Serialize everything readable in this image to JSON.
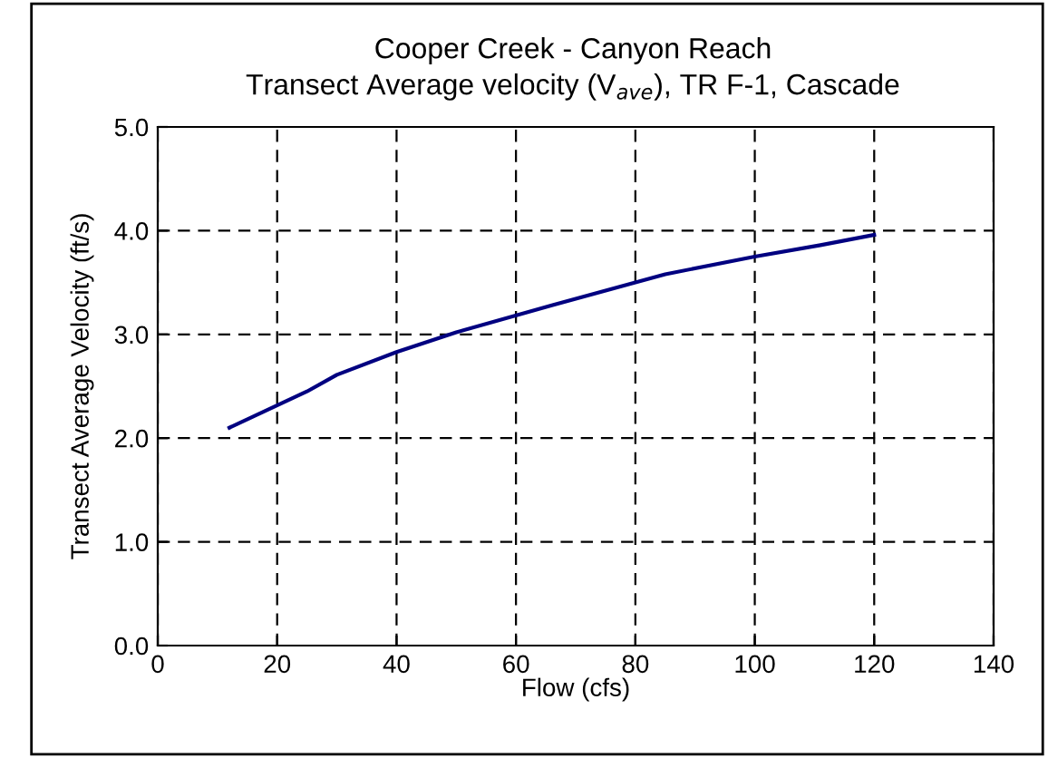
{
  "chart_data": {
    "type": "line",
    "title": "Cooper Creek - Canyon Reach",
    "subtitle": "Transect Average velocity (V$_{ave}$), TR F-1, Cascade",
    "xlabel": "Flow (cfs)",
    "ylabel": "Transect Average Velocity (ft/s)",
    "x": [
      12,
      25,
      30,
      40,
      50,
      66,
      80,
      85,
      100,
      111,
      120
    ],
    "series": [
      {
        "color": "#000080",
        "values": [
          2.1,
          2.45,
          2.61,
          2.83,
          3.02,
          3.28,
          3.5,
          3.58,
          3.75,
          3.86,
          3.96
        ]
      }
    ],
    "xlim": [
      0,
      140
    ],
    "xticks": [
      0,
      20,
      40,
      60,
      80,
      100,
      120,
      140
    ],
    "ylim": [
      0,
      5
    ],
    "yticks": [
      {
        "value": 0,
        "label": "0.0"
      },
      {
        "value": 1,
        "label": "1.0"
      },
      {
        "value": 2,
        "label": "2.0"
      },
      {
        "value": 3,
        "label": "3.0"
      },
      {
        "value": 4,
        "label": "4.0"
      },
      {
        "value": 5,
        "label": "5.0"
      }
    ],
    "grid": true,
    "line_style": "solid",
    "marker": "none"
  }
}
